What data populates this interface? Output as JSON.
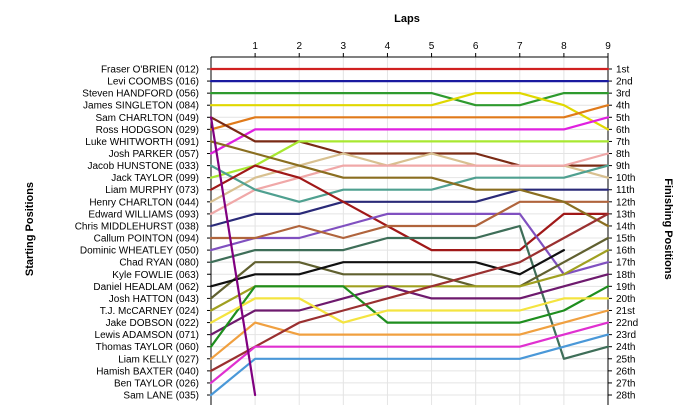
{
  "chart_data": {
    "type": "line",
    "title": "Laps",
    "ylabel_left": "Starting Positions",
    "ylabel_right": "Finishing Positions",
    "x_ticks": [
      "1",
      "2",
      "3",
      "4",
      "5",
      "6",
      "7",
      "8",
      "9"
    ],
    "x_range": [
      0,
      9
    ],
    "y_range": [
      1,
      28
    ],
    "y_axis_reversed": true,
    "grid": true,
    "drivers": [
      "Fraser O'BRIEN (012)",
      "Levi COOMBS (016)",
      "Steven HANDFORD (056)",
      "James SINGLETON (084)",
      "Sam CHARLTON (049)",
      "Ross HODGSON (029)",
      "Luke WHITWORTH (091)",
      "Josh PARKER (057)",
      "Jacob HUNSTONE (033)",
      "Jack TAYLOR (099)",
      "Liam MURPHY (073)",
      "Henry CHARLTON (044)",
      "Edward WILLIAMS (093)",
      "Chris MIDDLEHURST (038)",
      "Callum POINTON (094)",
      "Dominic WHEATLEY (050)",
      "Chad RYAN (080)",
      "Kyle FOWLIE (063)",
      "Daniel HEADLAM (062)",
      "Josh HATTON (043)",
      "T.J. McCARNEY (024)",
      "Jake DOBSON (022)",
      "Lewis ADAMSON (071)",
      "Thomas TAYLOR (060)",
      "Liam KELLY (027)",
      "Hamish BAXTER (040)",
      "Ben TAYLOR (026)",
      "Sam LANE (035)"
    ],
    "finishing_labels": [
      "1st",
      "2nd",
      "3rd",
      "4th",
      "5th",
      "6th",
      "7th",
      "8th",
      "9th",
      "10th",
      "11th",
      "12th",
      "13th",
      "14th",
      "15th",
      "16th",
      "17th",
      "18th",
      "19th",
      "20th",
      "21st",
      "22nd",
      "23rd",
      "24th",
      "25th",
      "26th",
      "27th",
      "28th"
    ],
    "series": [
      {
        "color": "#d02020",
        "positions": [
          1,
          1,
          1,
          1,
          1,
          1,
          1,
          1,
          1,
          1
        ]
      },
      {
        "color": "#1a1aa0",
        "positions": [
          2,
          2,
          2,
          2,
          2,
          2,
          2,
          2,
          2,
          2
        ]
      },
      {
        "color": "#2e9a2e",
        "positions": [
          3,
          3,
          3,
          3,
          3,
          3,
          4,
          4,
          3,
          3
        ]
      },
      {
        "color": "#e0d800",
        "positions": [
          4,
          4,
          4,
          4,
          4,
          4,
          3,
          3,
          4,
          6
        ]
      },
      {
        "color": "#e07a1a",
        "positions": [
          6,
          5,
          5,
          5,
          5,
          5,
          5,
          5,
          5,
          4
        ]
      },
      {
        "color": "#e020e0",
        "positions": [
          8,
          6,
          6,
          6,
          6,
          6,
          6,
          6,
          6,
          5
        ]
      },
      {
        "color": "#7a2a14",
        "positions": [
          5,
          7,
          7,
          8,
          8,
          8,
          8,
          9,
          9,
          9
        ]
      },
      {
        "color": "#a8e830",
        "positions": [
          10,
          9,
          7,
          7,
          7,
          7,
          7,
          7,
          7,
          7
        ]
      },
      {
        "color": "#d8c090",
        "positions": [
          12,
          10,
          9,
          8,
          9,
          8,
          9,
          9,
          9,
          10
        ]
      },
      {
        "color": "#f0a8a8",
        "positions": [
          13,
          11,
          10,
          9,
          9,
          9,
          9,
          9,
          9,
          8
        ]
      },
      {
        "color": "#4fa090",
        "positions": [
          9,
          11,
          12,
          11,
          11,
          11,
          10,
          10,
          10,
          9
        ]
      },
      {
        "color": "#2a2a78",
        "positions": [
          14,
          13,
          13,
          12,
          12,
          12,
          12,
          11,
          11,
          11
        ]
      },
      {
        "color": "#a01818",
        "positions": [
          11,
          9,
          10,
          12,
          14,
          16,
          16,
          16,
          13,
          13
        ]
      },
      {
        "color": "#8050c0",
        "positions": [
          16,
          15,
          15,
          14,
          13,
          13,
          13,
          13,
          18,
          17
        ]
      },
      {
        "color": "#b0643c",
        "positions": [
          15,
          15,
          14,
          15,
          14,
          14,
          14,
          12,
          12,
          12
        ]
      },
      {
        "color": "#8a6e20",
        "positions": [
          7,
          8,
          9,
          10,
          10,
          10,
          11,
          11,
          12,
          14
        ]
      },
      {
        "color": "#3e6e58",
        "positions": [
          17,
          16,
          16,
          16,
          15,
          15,
          15,
          14,
          25,
          24
        ]
      },
      {
        "color": "#606030",
        "positions": [
          20,
          17,
          17,
          18,
          18,
          18,
          19,
          19,
          17,
          15
        ]
      },
      {
        "color": "#101010",
        "positions": [
          19,
          18,
          18,
          17,
          17,
          17,
          17,
          18,
          16,
          null
        ]
      },
      {
        "color": "#a0a020",
        "positions": [
          21,
          19,
          19,
          19,
          19,
          19,
          19,
          19,
          18,
          16
        ]
      },
      {
        "color": "#6e1a6e",
        "positions": [
          23,
          21,
          21,
          20,
          19,
          20,
          20,
          20,
          19,
          18
        ]
      },
      {
        "color": "#1e8e1e",
        "positions": [
          24,
          19,
          19,
          19,
          22,
          22,
          22,
          22,
          21,
          19
        ]
      },
      {
        "color": "#f4e440",
        "positions": [
          22,
          20,
          20,
          22,
          21,
          21,
          21,
          21,
          20,
          20
        ]
      },
      {
        "color": "#f0a040",
        "positions": [
          25,
          22,
          23,
          23,
          23,
          23,
          23,
          23,
          22,
          21
        ]
      },
      {
        "color": "#9a3030",
        "positions": [
          26,
          24,
          22,
          21,
          20,
          19,
          18,
          17,
          15,
          13
        ]
      },
      {
        "color": "#e030d0",
        "positions": [
          27,
          24,
          24,
          24,
          24,
          24,
          24,
          24,
          23,
          22
        ]
      },
      {
        "color": "#4a98d8",
        "positions": [
          28,
          25,
          25,
          25,
          25,
          25,
          25,
          25,
          24,
          23
        ]
      },
      {
        "color": "#800080",
        "positions": [
          5,
          28,
          null,
          null,
          null,
          null,
          null,
          null,
          null,
          null
        ]
      }
    ]
  }
}
